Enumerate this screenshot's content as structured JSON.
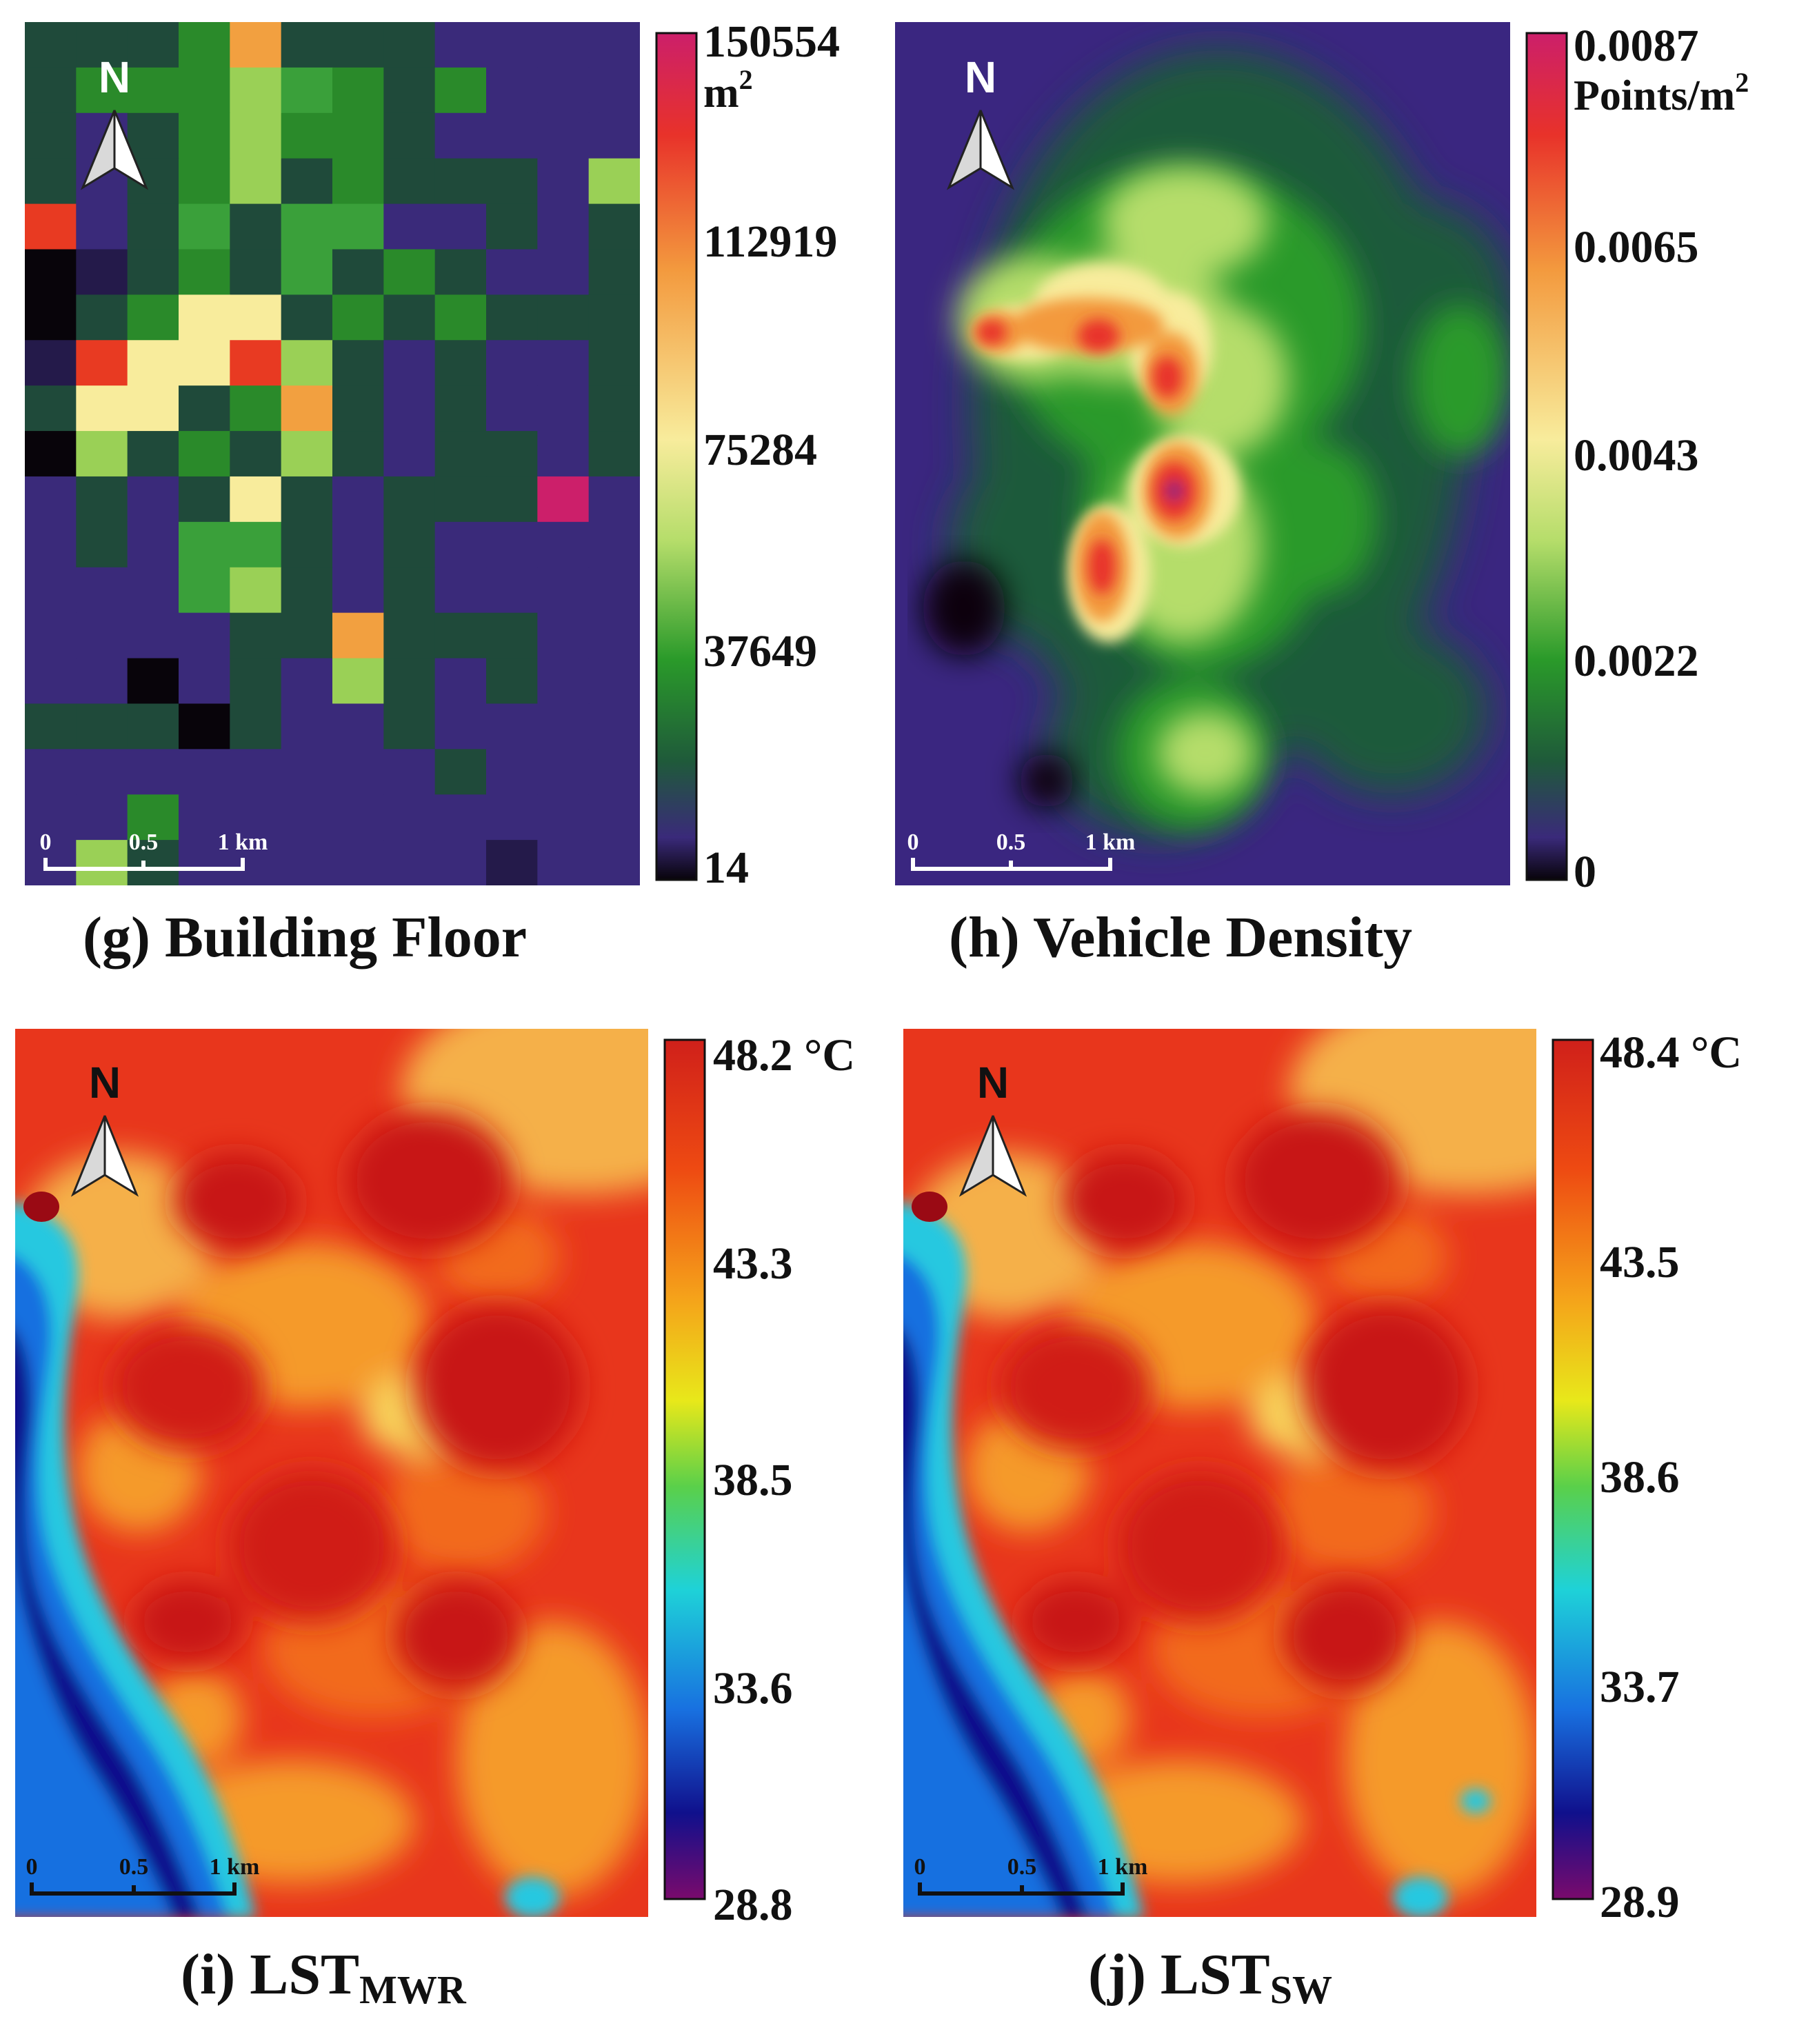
{
  "panels": [
    {
      "id": "g",
      "caption_label": "(g)",
      "caption_title": "Building Floor",
      "north_label": "N",
      "scale_ticks": [
        "0",
        "0.5",
        "1 km"
      ],
      "colorbar": {
        "ticks": [
          "150554",
          "112919",
          "75284",
          "37649",
          "14"
        ],
        "unit_main": "m",
        "unit_sup": "2",
        "colors": [
          "#cc1f6a",
          "#e8322a",
          "#f39a3e",
          "#f8ec9c",
          "#b5dd6a",
          "#2a9a2a",
          "#1f5a3a",
          "#3a2a7a",
          "#08040a"
        ]
      }
    },
    {
      "id": "h",
      "caption_label": "(h)",
      "caption_title": "Vehicle Density",
      "north_label": "N",
      "scale_ticks": [
        "0",
        "0.5",
        "1 km"
      ],
      "colorbar": {
        "ticks": [
          "0.0087",
          "0.0065",
          "0.0043",
          "0.0022",
          "0"
        ],
        "unit_main": "Points/m",
        "unit_sup": "2",
        "colors": [
          "#cc1f6a",
          "#e8322a",
          "#f39a3e",
          "#f8ec9c",
          "#b5dd6a",
          "#2a9a2a",
          "#1f5a3a",
          "#3a2a7a",
          "#08040a"
        ]
      }
    },
    {
      "id": "i",
      "caption_label": "(i)",
      "caption_title": "LST",
      "caption_sub": "MWR",
      "north_label": "N",
      "scale_ticks": [
        "0",
        "0.5",
        "1 km"
      ],
      "colorbar": {
        "ticks": [
          "48.2 °C",
          "43.3",
          "38.5",
          "33.6",
          "28.8"
        ],
        "colors": [
          "#d0201a",
          "#ee4a12",
          "#f5a21a",
          "#e8e81a",
          "#5ad04a",
          "#1ed2d8",
          "#1870e0",
          "#10108c",
          "#7a0a6c"
        ]
      }
    },
    {
      "id": "j",
      "caption_label": "(j)",
      "caption_title": "LST",
      "caption_sub": "SW",
      "north_label": "N",
      "scale_ticks": [
        "0",
        "0.5",
        "1 km"
      ],
      "colorbar": {
        "ticks": [
          "48.4 °C",
          "43.5",
          "38.6",
          "33.7",
          "28.9"
        ],
        "colors": [
          "#d0201a",
          "#ee4a12",
          "#f5a21a",
          "#e8e81a",
          "#5ad04a",
          "#1ed2d8",
          "#1870e0",
          "#10108c",
          "#7a0a6c"
        ]
      }
    }
  ]
}
